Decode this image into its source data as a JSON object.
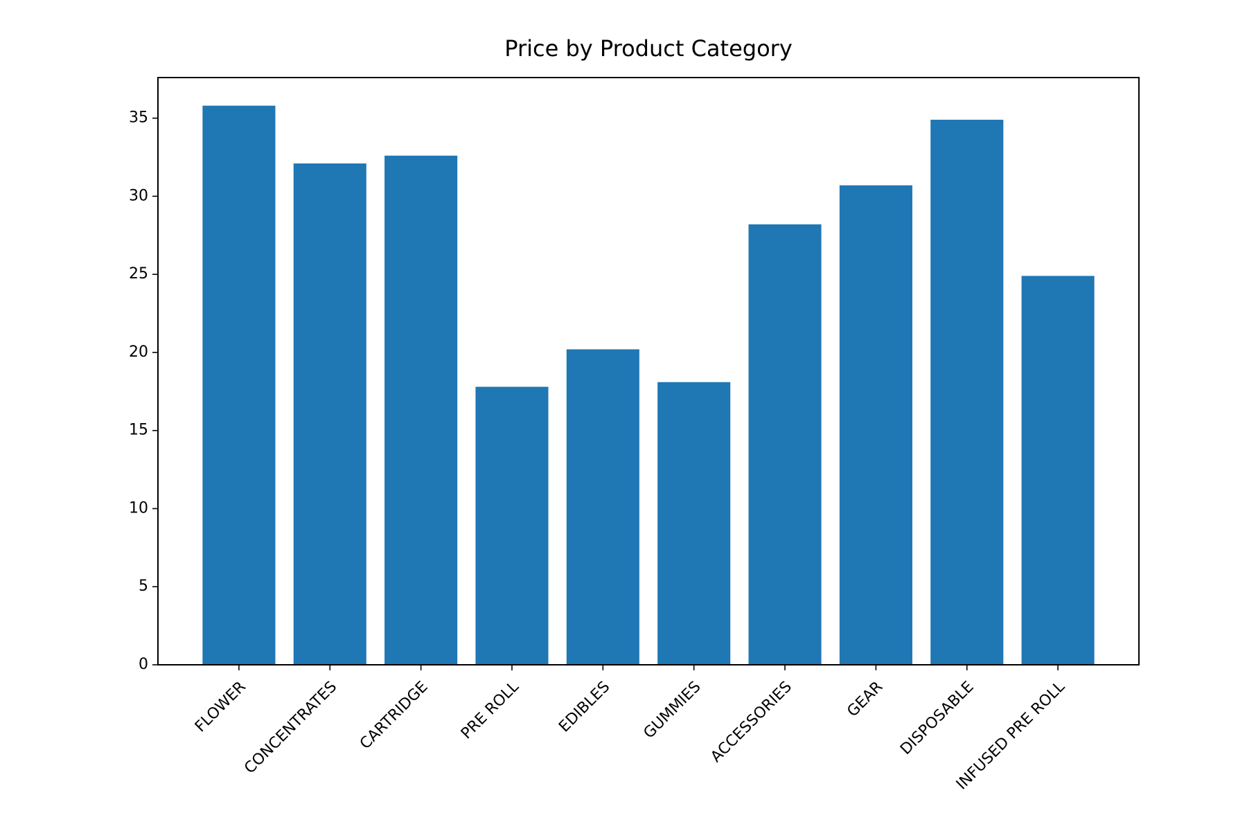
{
  "chart_data": {
    "type": "bar",
    "title": "Price by Product Category",
    "categories": [
      "FLOWER",
      "CONCENTRATES",
      "CARTRIDGE",
      "PRE ROLL",
      "EDIBLES",
      "GUMMIES",
      "ACCESSORIES",
      "GEAR",
      "DISPOSABLE",
      "INFUSED PRE ROLL"
    ],
    "values": [
      35.8,
      32.1,
      32.6,
      17.8,
      20.2,
      18.1,
      28.2,
      30.7,
      34.9,
      24.9
    ],
    "color": "#1f77b4",
    "ylim": [
      0,
      37.6
    ],
    "yticks": [
      0,
      5,
      10,
      15,
      20,
      25,
      30,
      35
    ],
    "grid": false
  }
}
